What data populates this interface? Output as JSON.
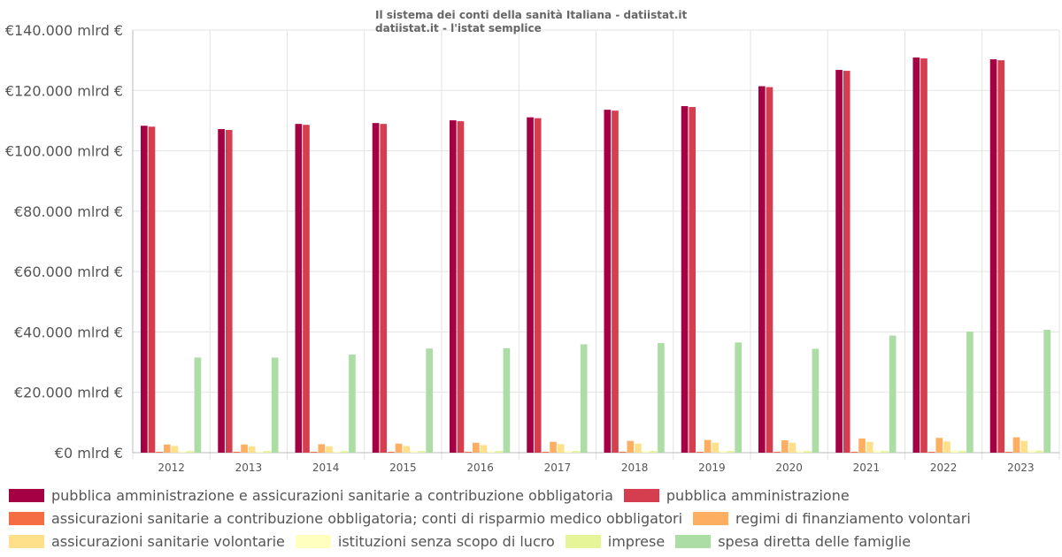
{
  "header": {
    "title": "Il sistema dei conti della sanità Italiana - datiistat.it",
    "subtitle": "datiistat.it - l'istat semplice"
  },
  "chart_data": {
    "type": "bar",
    "title": "Il sistema dei conti della sanità Italiana - datiistat.it",
    "subtitle": "datiistat.it - l'istat semplice",
    "xlabel": "",
    "ylabel": "",
    "ylim": [
      0,
      140000
    ],
    "y_ticks": [
      0,
      20000,
      40000,
      60000,
      80000,
      100000,
      120000,
      140000
    ],
    "y_tick_labels": [
      "€0 mlrd €",
      "€20.000 mlrd €",
      "€40.000 mlrd €",
      "€60.000 mlrd €",
      "€80.000 mlrd €",
      "€100.000 mlrd €",
      "€120.000 mlrd €",
      "€140.000 mlrd €"
    ],
    "grid": true,
    "legend_position": "bottom",
    "categories": [
      "2012",
      "2013",
      "2014",
      "2015",
      "2016",
      "2017",
      "2018",
      "2019",
      "2020",
      "2021",
      "2022",
      "2023"
    ],
    "series": [
      {
        "name": "pubblica amministrazione e assicurazioni sanitarie a contribuzione obbligatoria",
        "color": "#a50044",
        "values": [
          108300,
          107200,
          108900,
          109200,
          110100,
          111100,
          113600,
          114800,
          121400,
          126800,
          130900,
          130300
        ]
      },
      {
        "name": "pubblica amministrazione",
        "color": "#d53e4f",
        "values": [
          108000,
          106900,
          108600,
          108900,
          109800,
          110800,
          113300,
          114500,
          121100,
          126500,
          130600,
          130000
        ]
      },
      {
        "name": "assicurazioni sanitarie a contribuzione obbligatoria; conti di risparmio medico obbligatori",
        "color": "#f46d43",
        "values": [
          300,
          300,
          300,
          300,
          300,
          300,
          300,
          300,
          300,
          300,
          300,
          300
        ]
      },
      {
        "name": "regimi di finanziamento volontari",
        "color": "#fdae61",
        "values": [
          2700,
          2700,
          2800,
          3000,
          3300,
          3600,
          3900,
          4200,
          4100,
          4700,
          4900,
          5100
        ]
      },
      {
        "name": "assicurazioni sanitarie volontarie",
        "color": "#fee08b",
        "values": [
          2200,
          2100,
          2100,
          2200,
          2500,
          2800,
          3000,
          3300,
          3300,
          3600,
          3700,
          3900
        ]
      },
      {
        "name": "istituzioni senza scopo di lucro",
        "color": "#ffffbf",
        "values": [
          400,
          400,
          400,
          500,
          500,
          500,
          600,
          600,
          600,
          700,
          700,
          700
        ]
      },
      {
        "name": "imprese",
        "color": "#e6f598",
        "values": [
          600,
          600,
          600,
          600,
          600,
          600,
          600,
          600,
          600,
          600,
          600,
          700
        ]
      },
      {
        "name": "spesa diretta delle famiglie",
        "color": "#abdda4",
        "values": [
          31500,
          31500,
          32500,
          34500,
          34600,
          35900,
          36300,
          36500,
          34400,
          38800,
          40100,
          40700
        ]
      }
    ]
  }
}
